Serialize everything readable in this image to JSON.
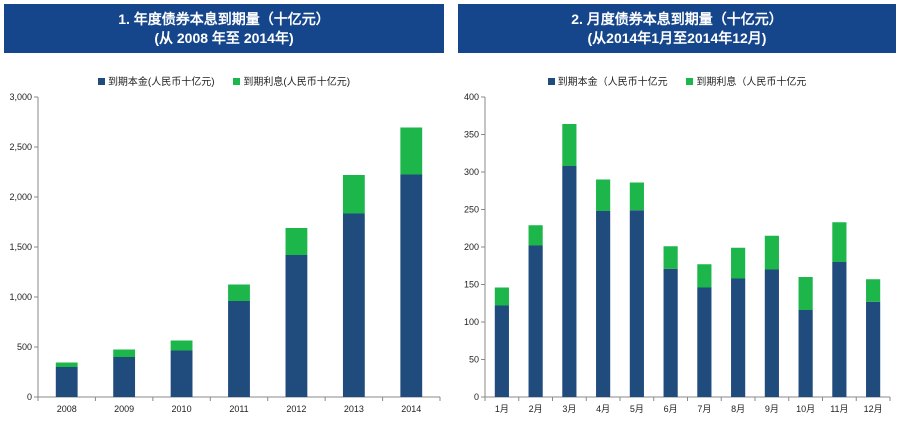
{
  "colors": {
    "title_bg": "#15468c",
    "principal": "#1f4b7d",
    "interest": "#1db64a",
    "axis": "#8a8a8a"
  },
  "left": {
    "title_line1": "1.   年度债券本息到期量（十亿元）",
    "title_line2": "(从 2008 年至 2014年)",
    "legend_principal": "到期本金(人民币十亿元)",
    "legend_interest": "到期利息(人民币十亿元)"
  },
  "right": {
    "title_line1": "2. 月度债券本息到期量（十亿元）",
    "title_line2": "(从2014年1月至2014年12月)",
    "legend_principal": "到期本金（人民币十亿元",
    "legend_interest": "到期利息（人民币十亿元"
  },
  "chart_data": [
    {
      "type": "bar",
      "stacked": true,
      "categories": [
        "2008",
        "2009",
        "2010",
        "2011",
        "2012",
        "2013",
        "2014"
      ],
      "series": [
        {
          "name": "到期本金(人民币十亿元)",
          "values": [
            300,
            400,
            465,
            960,
            1420,
            1835,
            2225
          ]
        },
        {
          "name": "到期利息(人民币十亿元)",
          "values": [
            45,
            75,
            100,
            165,
            270,
            385,
            470
          ]
        }
      ],
      "ylim": [
        0,
        3000
      ],
      "yticks": [
        "0",
        "500",
        "1,000",
        "1,500",
        "2,000",
        "2,500",
        "3,000"
      ],
      "legend_position": "top-center"
    },
    {
      "type": "bar",
      "stacked": true,
      "categories": [
        "1月",
        "2月",
        "3月",
        "4月",
        "5月",
        "6月",
        "7月",
        "8月",
        "9月",
        "10月",
        "11月",
        "12月"
      ],
      "series": [
        {
          "name": "到期本金（人民币十亿元",
          "values": [
            122,
            202,
            308,
            248,
            249,
            171,
            146,
            158,
            170,
            116,
            180,
            127
          ]
        },
        {
          "name": "到期利息（人民币十亿元",
          "values": [
            24,
            27,
            56,
            42,
            37,
            30,
            31,
            41,
            45,
            44,
            53,
            30
          ]
        }
      ],
      "ylim": [
        0,
        400
      ],
      "yticks": [
        "0",
        "50",
        "100",
        "150",
        "200",
        "250",
        "300",
        "350",
        "400"
      ],
      "legend_position": "top-center"
    }
  ]
}
